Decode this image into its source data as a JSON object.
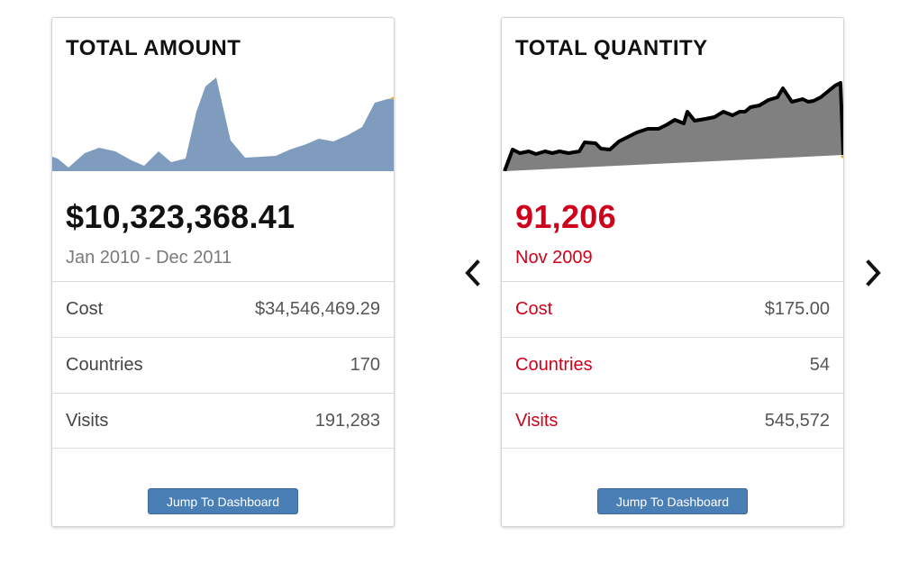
{
  "cards": [
    {
      "title": "TOTAL AMOUNT",
      "value": "$10,323,368.41",
      "period": "Jan 2010 - Dec 2011",
      "rows": [
        {
          "label": "Cost",
          "value": "$34,546,469.29"
        },
        {
          "label": "Countries",
          "value": "170"
        },
        {
          "label": "Visits",
          "value": "191,283"
        }
      ],
      "button_label": "Jump To Dashboard",
      "spark_fill": "#7f9bbe"
    },
    {
      "title": "TOTAL QUANTITY",
      "value": "91,206",
      "period": "Nov 2009",
      "rows": [
        {
          "label": "Cost",
          "value": "$175.00"
        },
        {
          "label": "Countries",
          "value": "54"
        },
        {
          "label": "Visits",
          "value": "545,572"
        }
      ],
      "button_label": "Jump To Dashboard",
      "spark_fill": "#808080",
      "highlight_color": "#d0021b"
    }
  ],
  "navigation": {
    "prev_icon": "chevron-left-icon",
    "next_icon": "chevron-right-icon"
  }
}
